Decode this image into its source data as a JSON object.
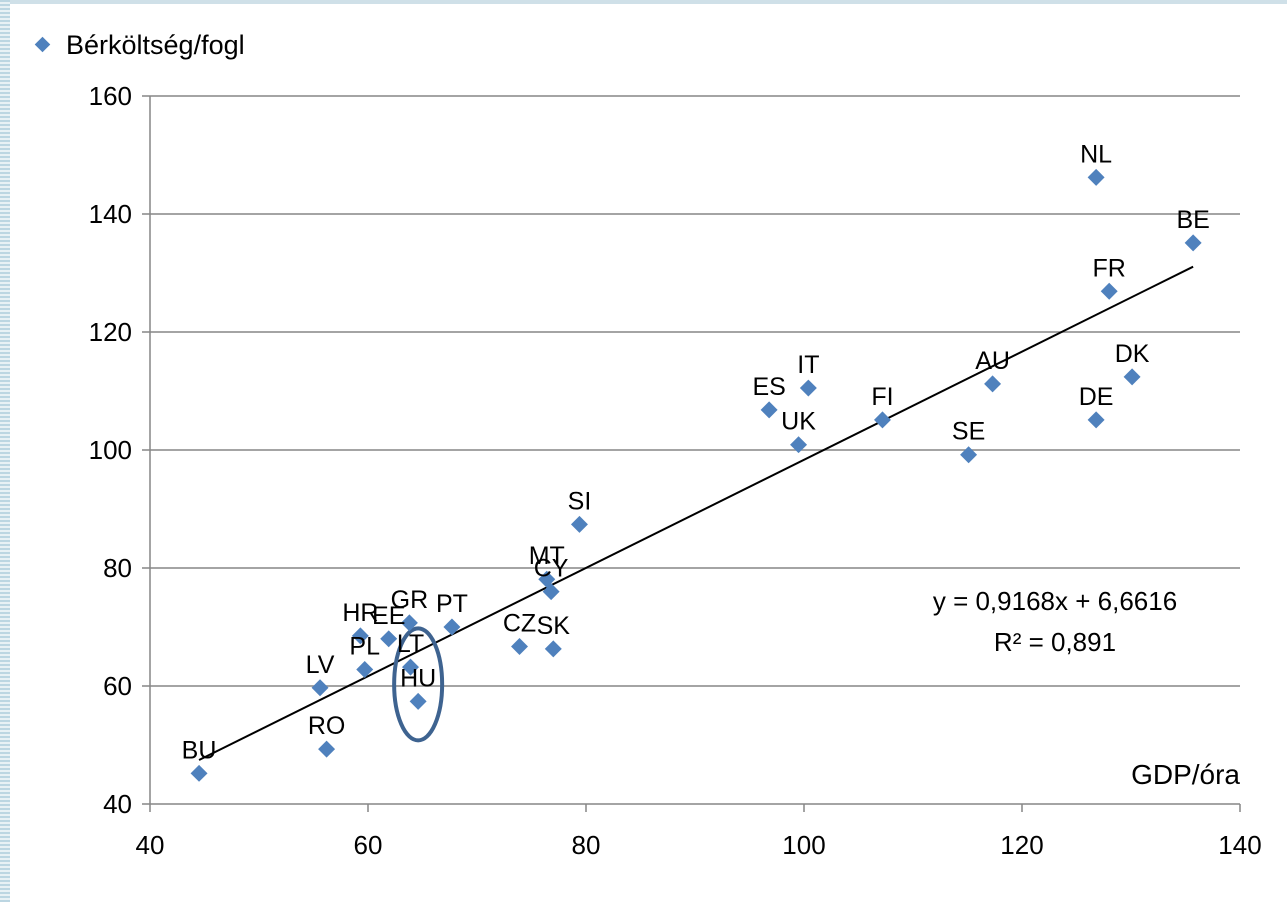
{
  "chart_data": {
    "type": "scatter",
    "title": "",
    "xlabel": "GDP/óra",
    "ylabel": "",
    "xlim": [
      40,
      140
    ],
    "ylim": [
      40,
      160
    ],
    "x_ticks": [
      "40",
      "60",
      "80",
      "100",
      "120",
      "140"
    ],
    "y_ticks": [
      "40",
      "60",
      "80",
      "100",
      "120",
      "140",
      "160"
    ],
    "grid": "horizontal",
    "legend_position": "top-left",
    "series": [
      {
        "name": "Bérköltség/fogl",
        "color": "#4f81bd",
        "marker": "diamond",
        "points": [
          {
            "label": "BU",
            "x": 44.5,
            "y": 45.2
          },
          {
            "label": "RO",
            "x": 56.2,
            "y": 49.3
          },
          {
            "label": "LV",
            "x": 55.6,
            "y": 59.7
          },
          {
            "label": "PL",
            "x": 59.7,
            "y": 62.8
          },
          {
            "label": "HR",
            "x": 59.3,
            "y": 68.5
          },
          {
            "label": "EE",
            "x": 61.9,
            "y": 68.0
          },
          {
            "label": "GR",
            "x": 63.8,
            "y": 70.7
          },
          {
            "label": "LT",
            "x": 63.9,
            "y": 63.2
          },
          {
            "label": "HU",
            "x": 64.6,
            "y": 57.4
          },
          {
            "label": "PT",
            "x": 67.7,
            "y": 70.0
          },
          {
            "label": "CZ",
            "x": 73.9,
            "y": 66.7
          },
          {
            "label": "SK",
            "x": 77.0,
            "y": 66.3
          },
          {
            "label": "CY",
            "x": 76.8,
            "y": 76.0
          },
          {
            "label": "MT",
            "x": 76.4,
            "y": 78.1
          },
          {
            "label": "SI",
            "x": 79.4,
            "y": 87.4
          },
          {
            "label": "ES",
            "x": 96.8,
            "y": 106.8
          },
          {
            "label": "IT",
            "x": 100.4,
            "y": 110.5
          },
          {
            "label": "UK",
            "x": 99.5,
            "y": 100.9
          },
          {
            "label": "FI",
            "x": 107.2,
            "y": 105.1
          },
          {
            "label": "SE",
            "x": 115.1,
            "y": 99.2
          },
          {
            "label": "AU",
            "x": 117.3,
            "y": 111.2
          },
          {
            "label": "DE",
            "x": 126.8,
            "y": 105.1
          },
          {
            "label": "DK",
            "x": 130.1,
            "y": 112.4
          },
          {
            "label": "FR",
            "x": 128.0,
            "y": 126.9
          },
          {
            "label": "NL",
            "x": 126.8,
            "y": 146.2
          },
          {
            "label": "BE",
            "x": 135.7,
            "y": 135.1
          }
        ]
      }
    ],
    "trendline": {
      "type": "linear",
      "slope": 0.9168,
      "intercept": 6.6616,
      "x_range": [
        44.5,
        135.7
      ],
      "color": "#000000"
    },
    "annotations": {
      "equation": "y = 0,9168x + 6,6616",
      "r_squared": "R² = 0,891",
      "highlight": {
        "label": "HU",
        "shape": "ellipse",
        "color": "#3e6390"
      }
    }
  }
}
